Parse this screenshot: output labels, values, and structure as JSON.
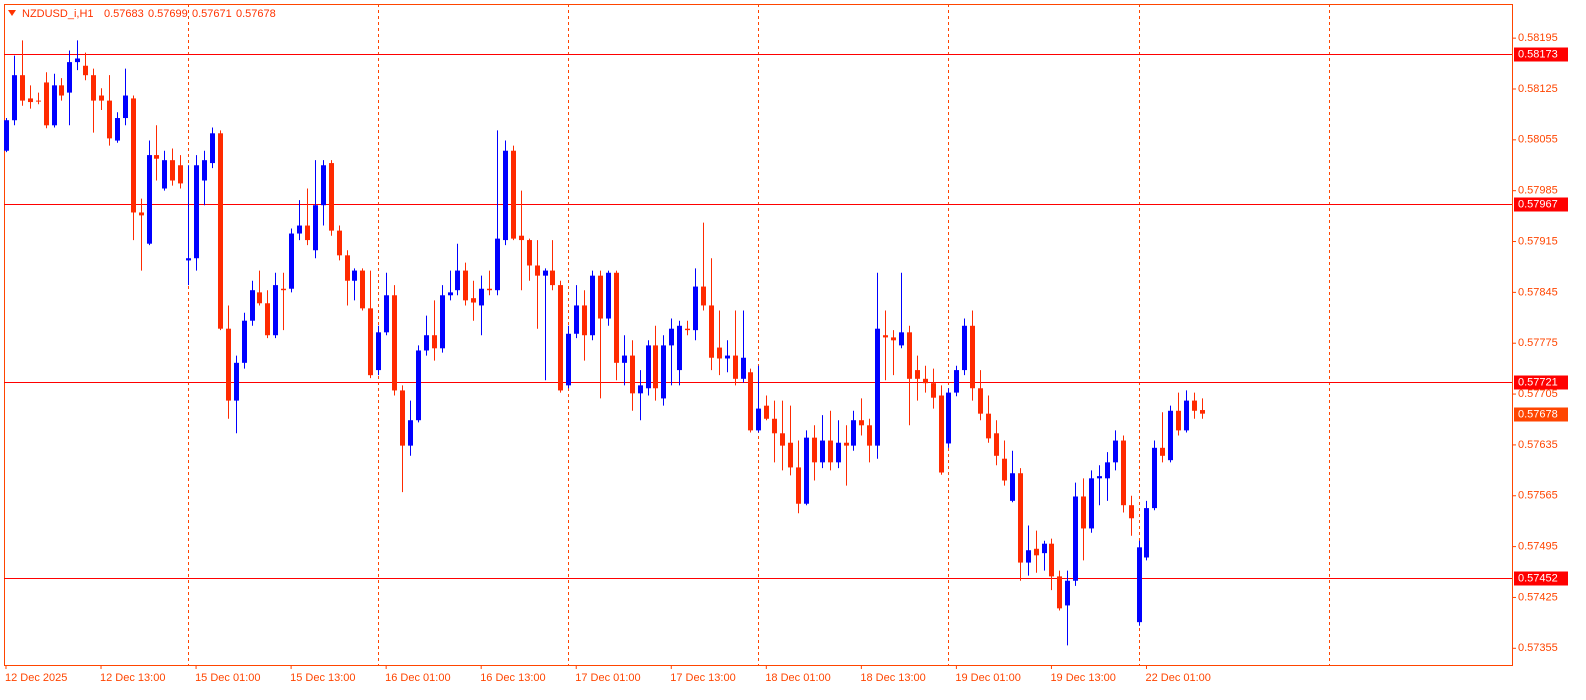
{
  "chart_data": {
    "type": "candlestick",
    "symbol": "NZDUSD_i,H1",
    "up_color": "#0000ff",
    "down_color": "#ff2a00",
    "axis_color": "#ff4500",
    "level_color": "#ff0000",
    "current_color": "#ff4500",
    "ylim": [
      0.57332,
      0.58242
    ],
    "yticks": [
      0.58195,
      0.58125,
      0.58055,
      0.57985,
      0.57915,
      0.57845,
      0.57775,
      0.57705,
      0.57635,
      0.57565,
      0.57495,
      0.57425,
      0.57355
    ],
    "xlim": [
      -0.25,
      190.15
    ],
    "xticks": [
      {
        "value": 0,
        "label": "12 Dec 2025"
      },
      {
        "value": 12,
        "label": "12 Dec 13:00"
      },
      {
        "value": 24,
        "label": "15 Dec 01:00"
      },
      {
        "value": 36,
        "label": "15 Dec 13:00"
      },
      {
        "value": 48,
        "label": "16 Dec 01:00"
      },
      {
        "value": 60,
        "label": "16 Dec 13:00"
      },
      {
        "value": 72,
        "label": "17 Dec 01:00"
      },
      {
        "value": 84,
        "label": "17 Dec 13:00"
      },
      {
        "value": 96,
        "label": "18 Dec 01:00"
      },
      {
        "value": 108,
        "label": "18 Dec 13:00"
      },
      {
        "value": 120,
        "label": "19 Dec 01:00"
      },
      {
        "value": 132,
        "label": "19 Dec 13:00"
      },
      {
        "value": 144,
        "label": "22 Dec 01:00"
      }
    ],
    "period_separators": [
      23,
      47,
      71,
      95,
      119,
      143,
      167
    ],
    "levels": [
      0.58173,
      0.57967,
      0.57721,
      0.57452
    ],
    "open": [
      0.5804,
      0.58082,
      0.58144,
      0.58112,
      0.58109,
      0.58134,
      0.58075,
      0.5813,
      0.5812,
      0.58162,
      0.58157,
      0.58144,
      0.58116,
      0.58109,
      0.58054,
      0.58085,
      0.58112,
      0.57955,
      0.57912,
      0.58034,
      0.57988,
      0.58027,
      0.5802,
      0.57889,
      0.57892,
      0.57999,
      0.58023,
      0.58064,
      0.57795,
      0.57696,
      0.57748,
      0.57806,
      0.57845,
      0.5783,
      0.57786,
      0.5785,
      0.5785,
      0.57926,
      0.57937,
      0.57903,
      0.57965,
      0.58023,
      0.5793,
      0.57896,
      0.57861,
      0.57875,
      0.57823,
      0.57738,
      0.5779,
      0.57841,
      0.5771,
      0.57634,
      0.57669,
      0.57765,
      0.57786,
      0.57768,
      0.57841,
      0.57848,
      0.57875,
      0.57837,
      0.57827,
      0.5785,
      0.57848,
      0.57917,
      0.5804,
      0.57923,
      0.57917,
      0.57882,
      0.57868,
      0.57875,
      0.57855,
      0.57717,
      0.57788,
      0.57827,
      0.57786,
      0.57868,
      0.57809,
      0.57872,
      0.57748,
      0.57758,
      0.57706,
      0.57713,
      0.57772,
      0.57699,
      0.57772,
      0.57738,
      0.57795,
      0.57793,
      0.57853,
      0.57827,
      0.57769,
      0.57754,
      0.57758,
      0.57726,
      0.57735,
      0.57655,
      0.57689,
      0.57671,
      0.57651,
      0.57638,
      0.57604,
      0.57554,
      0.57645,
      0.57611,
      0.57641,
      0.57611,
      0.57638,
      0.57634,
      0.57669,
      0.57662,
      0.57634,
      0.57786,
      0.57783,
      0.57772,
      0.5779,
      0.57738,
      0.57726,
      0.5772,
      0.57703,
      0.57637,
      0.57707,
      0.57738,
      0.57799,
      0.57713,
      0.57678,
      0.57651,
      0.57616,
      0.57558,
      0.57596,
      0.57473,
      0.57492,
      0.57486,
      0.57499,
      0.57454,
      0.57414,
      0.57448,
      0.57564,
      0.5752,
      0.57589,
      0.57589,
      0.57611,
      0.57641,
      0.57552,
      0.57391,
      0.5748,
      0.57548,
      0.57631,
      0.57614,
      0.57682,
      0.57655,
      0.57696,
      0.57683
    ],
    "high": [
      0.58085,
      0.58171,
      0.58192,
      0.5813,
      0.5812,
      0.58148,
      0.58146,
      0.5814,
      0.58178,
      0.58192,
      0.58175,
      0.58153,
      0.58126,
      0.58144,
      0.58093,
      0.58153,
      0.58116,
      0.57974,
      0.58054,
      0.58075,
      0.5804,
      0.58043,
      0.58034,
      0.5802,
      0.58034,
      0.5804,
      0.58072,
      0.58068,
      0.57827,
      0.57758,
      0.57817,
      0.57861,
      0.57875,
      0.57848,
      0.57872,
      0.57872,
      0.57933,
      0.57972,
      0.57988,
      0.58027,
      0.58027,
      0.58027,
      0.57937,
      0.57903,
      0.57878,
      0.57878,
      0.57875,
      0.57799,
      0.57872,
      0.57855,
      0.57717,
      0.57696,
      0.57772,
      0.57813,
      0.57834,
      0.57855,
      0.57875,
      0.57912,
      0.57886,
      0.57861,
      0.57868,
      0.57875,
      0.58068,
      0.58054,
      0.58047,
      0.57985,
      0.57919,
      0.57917,
      0.57878,
      0.57917,
      0.57861,
      0.57799,
      0.57855,
      0.57848,
      0.57875,
      0.57875,
      0.57875,
      0.57875,
      0.57786,
      0.57779,
      0.57738,
      0.57779,
      0.57799,
      0.57786,
      0.57809,
      0.57806,
      0.57806,
      0.57878,
      0.57941,
      0.57892,
      0.5782,
      0.57779,
      0.5782,
      0.5782,
      0.5774,
      0.57744,
      0.57703,
      0.57696,
      0.57696,
      0.57689,
      0.57641,
      0.57655,
      0.57662,
      0.57676,
      0.57682,
      0.57669,
      0.57662,
      0.57682,
      0.57699,
      0.57671,
      0.57872,
      0.5782,
      0.57793,
      0.57872,
      0.57799,
      0.57758,
      0.57744,
      0.5774,
      0.57717,
      0.57713,
      0.57744,
      0.57809,
      0.5782,
      0.57738,
      0.57703,
      0.57669,
      0.57641,
      0.57627,
      0.57603,
      0.57524,
      0.57517,
      0.57503,
      0.57506,
      0.57462,
      0.57462,
      0.57583,
      0.57589,
      0.576,
      0.57607,
      0.57625,
      0.57655,
      0.57648,
      0.57565,
      0.57503,
      0.57558,
      0.57641,
      0.5768,
      0.57689,
      0.57707,
      0.5771,
      0.57707,
      0.57699
    ],
    "low": [
      0.58038,
      0.58075,
      0.58102,
      0.58098,
      0.58104,
      0.58071,
      0.58072,
      0.58109,
      0.58075,
      0.58151,
      0.58137,
      0.58065,
      0.58096,
      0.58047,
      0.58051,
      0.58075,
      0.57917,
      0.57875,
      0.5791,
      0.57999,
      0.57985,
      0.57992,
      0.57988,
      0.57855,
      0.57875,
      0.57965,
      0.58016,
      0.57793,
      0.57671,
      0.57651,
      0.5774,
      0.57799,
      0.57827,
      0.57782,
      0.57782,
      0.57793,
      0.57845,
      0.57917,
      0.5791,
      0.57892,
      0.57937,
      0.57923,
      0.57889,
      0.57827,
      0.57834,
      0.5782,
      0.57727,
      0.57731,
      0.57786,
      0.57703,
      0.5757,
      0.5762,
      0.57666,
      0.57758,
      0.57751,
      0.57762,
      0.57834,
      0.57841,
      0.57827,
      0.57806,
      0.57786,
      0.57841,
      0.57841,
      0.5791,
      0.57917,
      0.57848,
      0.57861,
      0.57795,
      0.57724,
      0.57848,
      0.57707,
      0.57713,
      0.57782,
      0.57751,
      0.57779,
      0.57699,
      0.57799,
      0.57724,
      0.57717,
      0.57682,
      0.57669,
      0.57703,
      0.57696,
      0.57689,
      0.57717,
      0.57717,
      0.57786,
      0.57779,
      0.5782,
      0.57738,
      0.57731,
      0.57735,
      0.57717,
      0.57721,
      0.57652,
      0.57652,
      0.57669,
      0.57611,
      0.576,
      0.57593,
      0.57541,
      0.57552,
      0.57586,
      0.57603,
      0.576,
      0.57603,
      0.57579,
      0.57627,
      0.57648,
      0.57611,
      0.57616,
      0.57724,
      0.57731,
      0.57768,
      0.57662,
      0.57696,
      0.57707,
      0.57685,
      0.57594,
      0.57631,
      0.57702,
      0.57731,
      0.57696,
      0.57669,
      0.57638,
      0.57607,
      0.57579,
      0.57556,
      0.57448,
      0.57455,
      0.57459,
      0.57462,
      0.57435,
      0.57407,
      0.57359,
      0.57441,
      0.57476,
      0.57514,
      0.57552,
      0.57558,
      0.576,
      0.57542,
      0.5751,
      0.57386,
      0.57476,
      0.57545,
      0.57611,
      0.57611,
      0.57648,
      0.57652,
      0.57671,
      0.57671
    ],
    "close": [
      0.58082,
      0.58144,
      0.58109,
      0.58107,
      0.58108,
      0.58075,
      0.5813,
      0.58116,
      0.58162,
      0.58167,
      0.58144,
      0.58109,
      0.58109,
      0.58057,
      0.58085,
      0.58116,
      0.57955,
      0.57951,
      0.58034,
      0.58029,
      0.58027,
      0.57999,
      0.57995,
      0.57892,
      0.5802,
      0.58027,
      0.58064,
      0.57795,
      0.57696,
      0.57748,
      0.57806,
      0.57848,
      0.5783,
      0.57786,
      0.57855,
      0.57848,
      0.57926,
      0.57937,
      0.57917,
      0.57965,
      0.5802,
      0.5793,
      0.57896,
      0.57861,
      0.57875,
      0.57823,
      0.57731,
      0.5779,
      0.57841,
      0.5771,
      0.57634,
      0.57669,
      0.57765,
      0.57786,
      0.57768,
      0.57841,
      0.57845,
      0.57875,
      0.57834,
      0.57831,
      0.5785,
      0.57848,
      0.57919,
      0.5804,
      0.57919,
      0.57917,
      0.57882,
      0.57868,
      0.57875,
      0.57855,
      0.5771,
      0.57788,
      0.57827,
      0.57786,
      0.57868,
      0.57809,
      0.57872,
      0.57748,
      0.57758,
      0.57706,
      0.57717,
      0.57772,
      0.57713,
      0.57772,
      0.57795,
      0.57799,
      0.57793,
      0.57853,
      0.57827,
      0.57755,
      0.57754,
      0.57758,
      0.57726,
      0.57755,
      0.57655,
      0.57685,
      0.57671,
      0.57651,
      0.57634,
      0.57604,
      0.57554,
      0.57645,
      0.57611,
      0.57641,
      0.57611,
      0.57638,
      0.57634,
      0.57669,
      0.57662,
      0.57634,
      0.57795,
      0.57783,
      0.57779,
      0.5779,
      0.57726,
      0.57726,
      0.5772,
      0.577,
      0.57597,
      0.57707,
      0.57738,
      0.57799,
      0.57713,
      0.57678,
      0.57644,
      0.5762,
      0.57586,
      0.57596,
      0.57473,
      0.5749,
      0.57483,
      0.57499,
      0.57454,
      0.5741,
      0.57448,
      0.57564,
      0.5752,
      0.57589,
      0.57592,
      0.57611,
      0.57641,
      0.57552,
      0.57534,
      0.57494,
      0.57548,
      0.57631,
      0.5762,
      0.57682,
      0.57655,
      0.57696,
      0.57682,
      0.57678
    ]
  }
}
